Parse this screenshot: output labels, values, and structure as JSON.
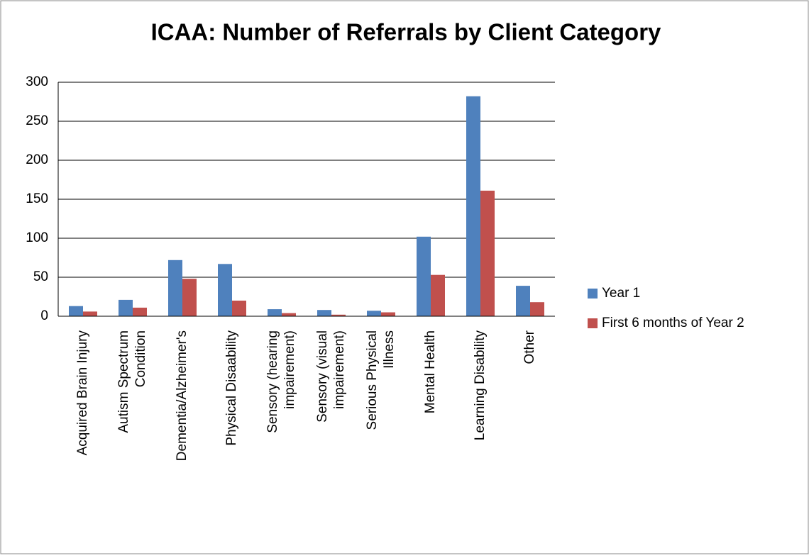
{
  "chart_data": {
    "type": "bar",
    "title": "ICAA: Number of Referrals by Client Category",
    "categories": [
      "Acquired Brain Injury",
      "Autism Spectrum Condition",
      "Dementia/Alzheimer's",
      "Physical Disaability",
      "Sensory (hearing impairement)",
      "Sensory (visual impairement)",
      "Serious Physical Illness",
      "Mental Health",
      "Learning Disability",
      "Other"
    ],
    "series": [
      {
        "name": "Year 1",
        "color": "#4f81bd",
        "values": [
          13,
          21,
          72,
          67,
          9,
          8,
          7,
          102,
          282,
          39
        ]
      },
      {
        "name": "First 6 months of Year 2",
        "color": "#c0504d",
        "values": [
          6,
          11,
          48,
          20,
          4,
          2,
          5,
          53,
          161,
          18
        ]
      }
    ],
    "ylim": [
      0,
      300
    ],
    "yticks": [
      0,
      50,
      100,
      150,
      200,
      250,
      300
    ],
    "grid": true,
    "legend": "right"
  }
}
